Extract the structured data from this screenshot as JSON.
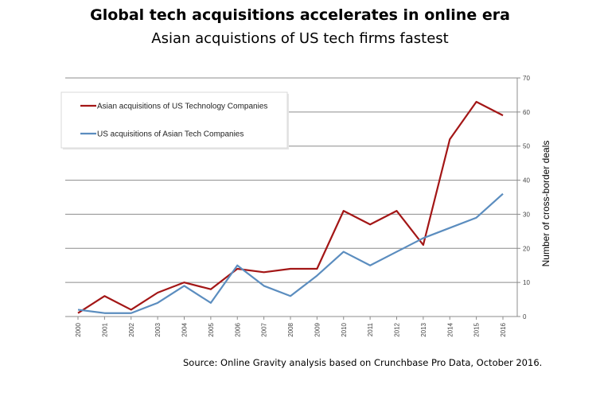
{
  "chart_data": {
    "type": "line",
    "title": "Global tech acquisitions accelerates in online era",
    "subtitle": "Asian acquistions of US tech firms fastest",
    "xlabel": "",
    "ylabel": "Number of cross-border deals",
    "categories": [
      "2000",
      "2001",
      "2002",
      "2003",
      "2004",
      "2005",
      "2006",
      "2007",
      "2008",
      "2009",
      "2010",
      "2011",
      "2012",
      "2013",
      "2014",
      "2015",
      "2016"
    ],
    "ylim": [
      0,
      70
    ],
    "yticks": [
      "0",
      "10",
      "20",
      "30",
      "40",
      "50",
      "60",
      "70"
    ],
    "y_axis_side": "right",
    "grid": true,
    "legend_position": "top-left",
    "series": [
      {
        "name": "Asian acquisitions of US Technology Companies",
        "color": "#a31616",
        "values": [
          1,
          6,
          2,
          7,
          10,
          8,
          14,
          13,
          14,
          14,
          31,
          27,
          31,
          21,
          52,
          63,
          59
        ]
      },
      {
        "name": "US acquisitions of Asian Tech Companies",
        "color": "#5b8dbf",
        "values": [
          2,
          1,
          1,
          4,
          9,
          4,
          15,
          9,
          6,
          12,
          19,
          15,
          19,
          23,
          26,
          29,
          36
        ]
      }
    ],
    "source": "Source: Online Gravity analysis based on Crunchbase Pro Data, October 2016."
  }
}
